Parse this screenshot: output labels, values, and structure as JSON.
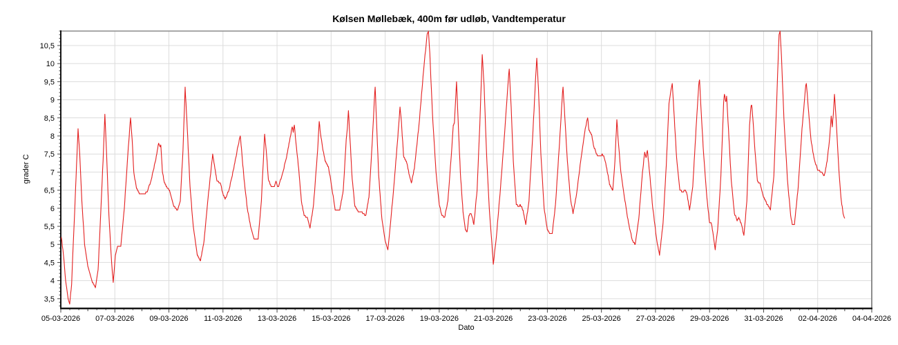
{
  "chart_data": {
    "type": "line",
    "title": "Kølsen Møllebæk, 400m før udløb, Vandtemperatur",
    "xlabel": "Dato",
    "ylabel": "grader C",
    "grid": true,
    "legend_position": "none",
    "colors": {
      "line": "#e31e1e",
      "grid": "#dcdcdc",
      "frame": "#8c8c8c",
      "axis": "#151515",
      "tick": "#444444",
      "text": "#000000"
    },
    "x_axis": {
      "unit": "days since 2026-03-05 00:00",
      "range_days": [
        0,
        30
      ],
      "major_tick_every_days": 2,
      "tick_labels": [
        "05-03-2026",
        "07-03-2026",
        "09-03-2026",
        "11-03-2026",
        "13-03-2026",
        "15-03-2026",
        "17-03-2026",
        "19-03-2026",
        "21-03-2026",
        "23-03-2026",
        "25-03-2026",
        "27-03-2026",
        "29-03-2026",
        "31-03-2026",
        "02-04-2026",
        "04-04-2026"
      ]
    },
    "y_axis": {
      "range": [
        3.23,
        10.9
      ],
      "tick_values": [
        10.5,
        10,
        9.5,
        9,
        8.5,
        8,
        7.5,
        7,
        6.5,
        6,
        5.5,
        5,
        4.5,
        4,
        3.5
      ],
      "tick_labels": [
        "10,5",
        "10",
        "9,5",
        "9",
        "8,5",
        "8",
        "7,5",
        "7",
        "6,5",
        "6",
        "5,5",
        "5",
        "4,5",
        "4",
        "3,5"
      ],
      "minor_tick_step": 0.1
    },
    "series": [
      {
        "name": "Vandtemperatur",
        "quantization_step_c": 0.05,
        "points": [
          [
            0.02,
            5.2
          ],
          [
            0.1,
            4.7
          ],
          [
            0.18,
            4.0
          ],
          [
            0.27,
            3.5
          ],
          [
            0.33,
            3.35
          ],
          [
            0.4,
            3.9
          ],
          [
            0.46,
            5.0
          ],
          [
            0.53,
            6.2
          ],
          [
            0.6,
            7.5
          ],
          [
            0.64,
            8.2
          ],
          [
            0.7,
            7.5
          ],
          [
            0.78,
            6.2
          ],
          [
            0.88,
            5.0
          ],
          [
            1.0,
            4.4
          ],
          [
            1.15,
            4.0
          ],
          [
            1.28,
            3.8
          ],
          [
            1.38,
            4.3
          ],
          [
            1.48,
            5.9
          ],
          [
            1.58,
            7.6
          ],
          [
            1.63,
            8.6
          ],
          [
            1.69,
            7.6
          ],
          [
            1.78,
            5.8
          ],
          [
            1.88,
            4.5
          ],
          [
            1.94,
            3.95
          ],
          [
            2.02,
            4.7
          ],
          [
            2.1,
            4.95
          ],
          [
            2.22,
            4.95
          ],
          [
            2.35,
            6.0
          ],
          [
            2.5,
            7.7
          ],
          [
            2.58,
            8.5
          ],
          [
            2.64,
            7.9
          ],
          [
            2.7,
            7.0
          ],
          [
            2.8,
            6.55
          ],
          [
            2.92,
            6.4
          ],
          [
            3.08,
            6.4
          ],
          [
            3.2,
            6.45
          ],
          [
            3.35,
            6.8
          ],
          [
            3.5,
            7.3
          ],
          [
            3.62,
            7.8
          ],
          [
            3.67,
            7.7
          ],
          [
            3.7,
            7.75
          ],
          [
            3.76,
            7.0
          ],
          [
            3.82,
            6.75
          ],
          [
            3.9,
            6.6
          ],
          [
            4.02,
            6.5
          ],
          [
            4.18,
            6.05
          ],
          [
            4.32,
            5.95
          ],
          [
            4.42,
            6.2
          ],
          [
            4.52,
            7.6
          ],
          [
            4.6,
            9.35
          ],
          [
            4.68,
            8.2
          ],
          [
            4.78,
            6.6
          ],
          [
            4.9,
            5.5
          ],
          [
            5.05,
            4.7
          ],
          [
            5.17,
            4.55
          ],
          [
            5.3,
            5.1
          ],
          [
            5.45,
            6.3
          ],
          [
            5.62,
            7.5
          ],
          [
            5.7,
            7.1
          ],
          [
            5.78,
            6.75
          ],
          [
            5.9,
            6.7
          ],
          [
            6.0,
            6.4
          ],
          [
            6.08,
            6.25
          ],
          [
            6.22,
            6.5
          ],
          [
            6.4,
            7.1
          ],
          [
            6.55,
            7.7
          ],
          [
            6.64,
            8.0
          ],
          [
            6.7,
            7.5
          ],
          [
            6.78,
            6.8
          ],
          [
            6.9,
            6.0
          ],
          [
            7.02,
            5.5
          ],
          [
            7.15,
            5.15
          ],
          [
            7.3,
            5.15
          ],
          [
            7.42,
            6.2
          ],
          [
            7.54,
            8.05
          ],
          [
            7.6,
            7.6
          ],
          [
            7.68,
            6.8
          ],
          [
            7.78,
            6.6
          ],
          [
            7.9,
            6.62
          ],
          [
            7.96,
            6.75
          ],
          [
            8.04,
            6.58
          ],
          [
            8.18,
            6.9
          ],
          [
            8.35,
            7.4
          ],
          [
            8.5,
            8.0
          ],
          [
            8.56,
            8.25
          ],
          [
            8.6,
            8.12
          ],
          [
            8.64,
            8.3
          ],
          [
            8.7,
            7.8
          ],
          [
            8.8,
            7.1
          ],
          [
            8.9,
            6.2
          ],
          [
            9.0,
            5.8
          ],
          [
            9.12,
            5.73
          ],
          [
            9.22,
            5.45
          ],
          [
            9.35,
            6.1
          ],
          [
            9.5,
            7.6
          ],
          [
            9.56,
            8.4
          ],
          [
            9.61,
            8.05
          ],
          [
            9.68,
            7.7
          ],
          [
            9.78,
            7.3
          ],
          [
            9.9,
            7.15
          ],
          [
            10.02,
            6.6
          ],
          [
            10.15,
            5.97
          ],
          [
            10.32,
            5.95
          ],
          [
            10.45,
            6.5
          ],
          [
            10.56,
            7.9
          ],
          [
            10.6,
            8.2
          ],
          [
            10.64,
            8.7
          ],
          [
            10.7,
            7.9
          ],
          [
            10.78,
            6.8
          ],
          [
            10.88,
            6.05
          ],
          [
            11.0,
            5.92
          ],
          [
            11.15,
            5.88
          ],
          [
            11.28,
            5.8
          ],
          [
            11.4,
            6.3
          ],
          [
            11.52,
            7.8
          ],
          [
            11.6,
            9.0
          ],
          [
            11.63,
            9.35
          ],
          [
            11.68,
            8.4
          ],
          [
            11.76,
            6.9
          ],
          [
            11.88,
            5.7
          ],
          [
            12.0,
            5.1
          ],
          [
            12.1,
            4.85
          ],
          [
            12.2,
            5.6
          ],
          [
            12.32,
            6.6
          ],
          [
            12.45,
            7.8
          ],
          [
            12.55,
            8.8
          ],
          [
            12.6,
            8.4
          ],
          [
            12.68,
            7.45
          ],
          [
            12.8,
            7.25
          ],
          [
            12.9,
            6.9
          ],
          [
            12.97,
            6.7
          ],
          [
            13.08,
            7.1
          ],
          [
            13.25,
            8.3
          ],
          [
            13.42,
            9.8
          ],
          [
            13.55,
            10.8
          ],
          [
            13.6,
            10.9
          ],
          [
            13.65,
            10.3
          ],
          [
            13.75,
            8.6
          ],
          [
            13.88,
            7.0
          ],
          [
            14.0,
            6.1
          ],
          [
            14.1,
            5.8
          ],
          [
            14.2,
            5.75
          ],
          [
            14.32,
            6.2
          ],
          [
            14.45,
            7.5
          ],
          [
            14.52,
            8.3
          ],
          [
            14.56,
            8.35
          ],
          [
            14.62,
            9.2
          ],
          [
            14.64,
            9.5
          ],
          [
            14.7,
            8.4
          ],
          [
            14.78,
            7.0
          ],
          [
            14.88,
            5.9
          ],
          [
            14.97,
            5.4
          ],
          [
            15.03,
            5.35
          ],
          [
            15.1,
            5.8
          ],
          [
            15.18,
            5.87
          ],
          [
            15.28,
            5.55
          ],
          [
            15.4,
            6.5
          ],
          [
            15.5,
            8.3
          ],
          [
            15.59,
            10.25
          ],
          [
            15.66,
            9.4
          ],
          [
            15.75,
            7.5
          ],
          [
            15.85,
            6.0
          ],
          [
            15.95,
            5.0
          ],
          [
            16.0,
            4.45
          ],
          [
            16.1,
            5.1
          ],
          [
            16.25,
            6.4
          ],
          [
            16.42,
            8.1
          ],
          [
            16.55,
            9.5
          ],
          [
            16.59,
            9.85
          ],
          [
            16.66,
            8.8
          ],
          [
            16.74,
            7.3
          ],
          [
            16.85,
            6.1
          ],
          [
            16.95,
            6.05
          ],
          [
            17.0,
            6.1
          ],
          [
            17.1,
            5.95
          ],
          [
            17.2,
            5.55
          ],
          [
            17.32,
            6.2
          ],
          [
            17.45,
            7.9
          ],
          [
            17.58,
            9.8
          ],
          [
            17.61,
            10.15
          ],
          [
            17.67,
            9.3
          ],
          [
            17.76,
            7.5
          ],
          [
            17.88,
            6.0
          ],
          [
            18.0,
            5.4
          ],
          [
            18.08,
            5.3
          ],
          [
            18.18,
            5.3
          ],
          [
            18.3,
            6.1
          ],
          [
            18.45,
            7.8
          ],
          [
            18.56,
            9.2
          ],
          [
            18.58,
            9.35
          ],
          [
            18.64,
            8.6
          ],
          [
            18.74,
            7.3
          ],
          [
            18.85,
            6.3
          ],
          [
            18.95,
            5.85
          ],
          [
            19.08,
            6.4
          ],
          [
            19.25,
            7.4
          ],
          [
            19.4,
            8.2
          ],
          [
            19.49,
            8.5
          ],
          [
            19.54,
            8.15
          ],
          [
            19.63,
            8.05
          ],
          [
            19.72,
            7.7
          ],
          [
            19.85,
            7.45
          ],
          [
            19.98,
            7.45
          ],
          [
            20.02,
            7.5
          ],
          [
            20.1,
            7.42
          ],
          [
            20.2,
            7.1
          ],
          [
            20.3,
            6.65
          ],
          [
            20.42,
            6.5
          ],
          [
            20.5,
            7.3
          ],
          [
            20.57,
            8.45
          ],
          [
            20.63,
            7.8
          ],
          [
            20.72,
            7.0
          ],
          [
            20.85,
            6.3
          ],
          [
            21.0,
            5.6
          ],
          [
            21.15,
            5.1
          ],
          [
            21.25,
            5.0
          ],
          [
            21.38,
            5.7
          ],
          [
            21.52,
            7.0
          ],
          [
            21.6,
            7.55
          ],
          [
            21.65,
            7.4
          ],
          [
            21.7,
            7.6
          ],
          [
            21.78,
            7.0
          ],
          [
            21.9,
            6.0
          ],
          [
            22.05,
            5.1
          ],
          [
            22.15,
            4.7
          ],
          [
            22.28,
            5.6
          ],
          [
            22.4,
            7.2
          ],
          [
            22.5,
            8.9
          ],
          [
            22.54,
            9.1
          ],
          [
            22.58,
            9.3
          ],
          [
            22.62,
            9.45
          ],
          [
            22.68,
            8.7
          ],
          [
            22.78,
            7.4
          ],
          [
            22.9,
            6.5
          ],
          [
            23.02,
            6.45
          ],
          [
            23.08,
            6.52
          ],
          [
            23.16,
            6.42
          ],
          [
            23.26,
            5.95
          ],
          [
            23.38,
            6.6
          ],
          [
            23.5,
            8.2
          ],
          [
            23.6,
            9.4
          ],
          [
            23.63,
            9.55
          ],
          [
            23.68,
            8.8
          ],
          [
            23.78,
            7.5
          ],
          [
            23.9,
            6.3
          ],
          [
            24.0,
            5.6
          ],
          [
            24.06,
            5.62
          ],
          [
            24.12,
            5.35
          ],
          [
            24.21,
            4.87
          ],
          [
            24.3,
            5.4
          ],
          [
            24.42,
            6.9
          ],
          [
            24.52,
            8.9
          ],
          [
            24.55,
            9.15
          ],
          [
            24.6,
            8.95
          ],
          [
            24.63,
            9.1
          ],
          [
            24.7,
            8.2
          ],
          [
            24.8,
            6.8
          ],
          [
            24.92,
            5.85
          ],
          [
            25.02,
            5.67
          ],
          [
            25.08,
            5.75
          ],
          [
            25.18,
            5.55
          ],
          [
            25.27,
            5.25
          ],
          [
            25.38,
            6.2
          ],
          [
            25.48,
            8.3
          ],
          [
            25.53,
            8.8
          ],
          [
            25.56,
            8.87
          ],
          [
            25.6,
            8.5
          ],
          [
            25.68,
            7.6
          ],
          [
            25.77,
            6.75
          ],
          [
            25.88,
            6.67
          ],
          [
            25.98,
            6.35
          ],
          [
            26.12,
            6.12
          ],
          [
            26.25,
            5.97
          ],
          [
            26.38,
            6.9
          ],
          [
            26.5,
            9.3
          ],
          [
            26.57,
            10.8
          ],
          [
            26.61,
            10.9
          ],
          [
            26.66,
            10.2
          ],
          [
            26.75,
            8.5
          ],
          [
            26.88,
            6.8
          ],
          [
            27.0,
            5.8
          ],
          [
            27.06,
            5.57
          ],
          [
            27.14,
            5.55
          ],
          [
            27.28,
            6.6
          ],
          [
            27.42,
            8.2
          ],
          [
            27.56,
            9.4
          ],
          [
            27.58,
            9.45
          ],
          [
            27.65,
            8.8
          ],
          [
            27.75,
            7.9
          ],
          [
            27.86,
            7.4
          ],
          [
            28.0,
            7.05
          ],
          [
            28.14,
            7.0
          ],
          [
            28.24,
            6.88
          ],
          [
            28.35,
            7.3
          ],
          [
            28.45,
            8.0
          ],
          [
            28.5,
            8.55
          ],
          [
            28.54,
            8.25
          ],
          [
            28.58,
            8.6
          ],
          [
            28.62,
            9.15
          ],
          [
            28.68,
            8.5
          ],
          [
            28.78,
            7.1
          ],
          [
            28.86,
            6.3
          ],
          [
            28.94,
            5.85
          ],
          [
            29.0,
            5.72
          ]
        ]
      }
    ]
  }
}
